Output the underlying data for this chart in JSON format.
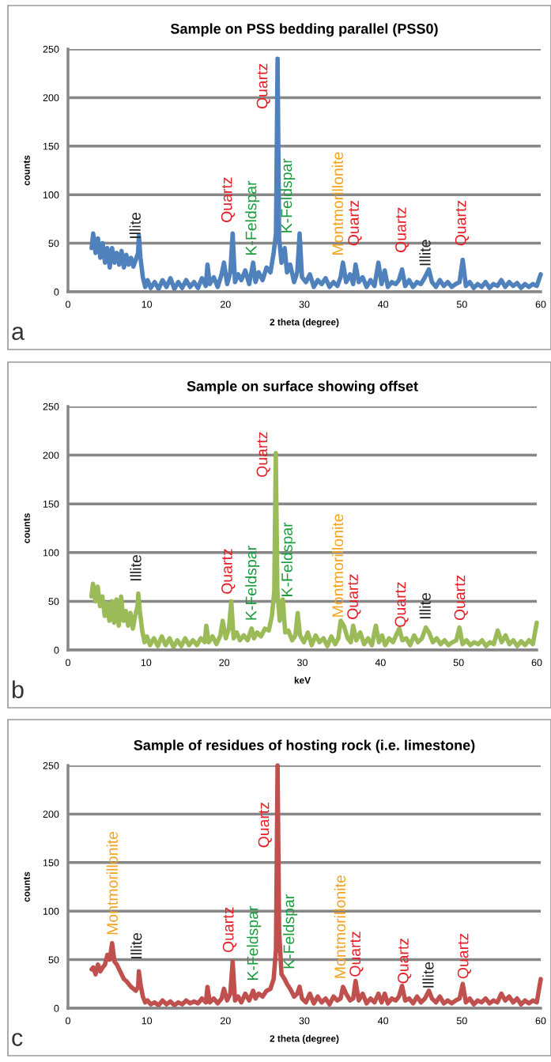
{
  "chart_data": [
    {
      "type": "line",
      "title": "Sample on PSS bedding parallel (PSS0)",
      "xlabel": "2 theta (degree)",
      "ylabel": "counts",
      "xlim": [
        0,
        60
      ],
      "ylim": [
        0,
        250
      ],
      "xticks": [
        0,
        10,
        20,
        30,
        40,
        50,
        60
      ],
      "yticks": [
        0,
        50,
        100,
        150,
        200,
        250
      ],
      "grid": "y",
      "legend": false,
      "marker": "none",
      "line_style": "solid",
      "x": [
        3,
        3.2,
        3.5,
        3.8,
        4.1,
        4.4,
        4.7,
        5.0,
        5.3,
        5.6,
        5.9,
        6.2,
        6.5,
        6.8,
        7.1,
        7.4,
        7.7,
        8.0,
        8.3,
        8.6,
        8.9,
        9.0,
        9.2,
        9.5,
        9.8,
        10.1,
        10.5,
        11,
        11.5,
        12,
        12.5,
        13,
        13.5,
        14,
        14.5,
        15,
        15.5,
        16,
        16.5,
        17,
        17.5,
        17.7,
        18,
        18.5,
        19,
        19.5,
        19.8,
        20.2,
        20.6,
        20.9,
        21.2,
        21.6,
        22,
        22.5,
        23,
        23.5,
        23.8,
        24.2,
        24.7,
        25.2,
        25.7,
        26.1,
        26.4,
        26.6,
        26.8,
        27.1,
        27.5,
        27.8,
        28.2,
        28.7,
        29.1,
        29.4,
        29.7,
        30.2,
        30.7,
        31.2,
        31.7,
        32.2,
        32.7,
        33.2,
        33.7,
        34.2,
        34.6,
        34.9,
        35.3,
        35.8,
        36.2,
        36.5,
        36.9,
        37.4,
        37.9,
        38.4,
        38.9,
        39.4,
        39.8,
        40.2,
        40.6,
        41.1,
        41.6,
        42.0,
        42.4,
        42.8,
        43.3,
        43.8,
        44.3,
        44.8,
        45.3,
        45.8,
        46.2,
        46.7,
        47.2,
        47.7,
        48.2,
        48.7,
        49.2,
        49.7,
        50.1,
        50.5,
        51,
        51.5,
        52,
        52.5,
        53,
        53.5,
        54,
        54.5,
        55,
        55.5,
        56,
        56.5,
        57,
        57.5,
        58,
        58.5,
        59,
        59.5,
        60
      ],
      "series": [
        {
          "color": "#4f81bd",
          "values": [
            45,
            60,
            40,
            55,
            35,
            50,
            30,
            45,
            25,
            45,
            30,
            40,
            28,
            42,
            25,
            38,
            28,
            35,
            26,
            33,
            40,
            58,
            35,
            15,
            5,
            12,
            4,
            10,
            3,
            12,
            5,
            14,
            3,
            10,
            4,
            12,
            5,
            10,
            4,
            14,
            6,
            28,
            8,
            15,
            5,
            18,
            30,
            8,
            20,
            60,
            10,
            18,
            12,
            22,
            8,
            30,
            10,
            20,
            12,
            25,
            20,
            40,
            60,
            240,
            55,
            30,
            45,
            20,
            28,
            10,
            20,
            60,
            15,
            10,
            18,
            5,
            12,
            8,
            14,
            5,
            10,
            6,
            15,
            30,
            10,
            18,
            8,
            28,
            10,
            15,
            5,
            12,
            6,
            30,
            8,
            22,
            5,
            10,
            8,
            12,
            23,
            6,
            12,
            5,
            10,
            8,
            15,
            23,
            10,
            5,
            12,
            6,
            10,
            5,
            8,
            10,
            33,
            6,
            10,
            4,
            8,
            5,
            10,
            4,
            8,
            6,
            12,
            5,
            10,
            6,
            9,
            4,
            8,
            5,
            8,
            6,
            18
          ]
        }
      ],
      "annotations": [
        "a",
        "Illite",
        "Quartz",
        "K-Feldspar",
        "Quartz",
        "K-Feldspar",
        "Montmorillonite",
        "Quartz",
        "Quartz",
        "Illite",
        "Quartz"
      ]
    },
    {
      "type": "line",
      "title": "Sample on surface showing offset",
      "xlabel": "keV",
      "ylabel": "counts",
      "xlim": [
        0,
        60
      ],
      "ylim": [
        0,
        250
      ],
      "xticks": [
        0,
        10,
        20,
        30,
        40,
        50,
        60
      ],
      "yticks": [
        0,
        50,
        100,
        150,
        200,
        250
      ],
      "grid": "y",
      "legend": false,
      "marker": "none",
      "line_style": "solid",
      "x": [
        3,
        3.2,
        3.5,
        3.8,
        4.1,
        4.4,
        4.7,
        5.0,
        5.3,
        5.6,
        5.9,
        6.2,
        6.5,
        6.8,
        7.1,
        7.4,
        7.7,
        8.0,
        8.3,
        8.6,
        8.9,
        9.0,
        9.2,
        9.5,
        9.8,
        10.1,
        10.5,
        11,
        11.5,
        12,
        12.5,
        13,
        13.5,
        14,
        14.5,
        15,
        15.5,
        16,
        16.5,
        17,
        17.5,
        17.7,
        18,
        18.5,
        19,
        19.5,
        19.8,
        20.2,
        20.6,
        20.9,
        21.2,
        21.6,
        22,
        22.5,
        23,
        23.5,
        23.8,
        24.2,
        24.7,
        25.2,
        25.7,
        26.1,
        26.4,
        26.6,
        26.8,
        27.1,
        27.5,
        27.8,
        28.2,
        28.7,
        29.1,
        29.4,
        29.7,
        30.2,
        30.7,
        31.2,
        31.7,
        32.2,
        32.7,
        33.2,
        33.7,
        34.2,
        34.6,
        34.9,
        35.3,
        35.8,
        36.2,
        36.5,
        36.9,
        37.4,
        37.9,
        38.4,
        38.9,
        39.4,
        39.8,
        40.2,
        40.6,
        41.1,
        41.6,
        42.0,
        42.4,
        42.8,
        43.3,
        43.8,
        44.3,
        44.8,
        45.3,
        45.8,
        46.2,
        46.7,
        47.2,
        47.7,
        48.2,
        48.7,
        49.2,
        49.7,
        50.1,
        50.5,
        51,
        51.5,
        52,
        52.5,
        53,
        53.5,
        54,
        54.5,
        55,
        55.5,
        56,
        56.5,
        57,
        57.5,
        58,
        58.5,
        59,
        59.5,
        60
      ],
      "series": [
        {
          "color": "#9bbb59",
          "values": [
            55,
            68,
            50,
            65,
            45,
            55,
            35,
            48,
            30,
            50,
            28,
            52,
            25,
            55,
            30,
            40,
            25,
            38,
            22,
            35,
            45,
            58,
            40,
            20,
            8,
            14,
            5,
            12,
            4,
            14,
            5,
            12,
            3,
            10,
            4,
            12,
            5,
            10,
            5,
            12,
            8,
            25,
            8,
            14,
            6,
            15,
            30,
            12,
            22,
            50,
            12,
            18,
            10,
            15,
            10,
            22,
            12,
            18,
            14,
            22,
            20,
            35,
            60,
            202,
            60,
            30,
            52,
            18,
            20,
            10,
            15,
            38,
            15,
            8,
            18,
            5,
            15,
            8,
            12,
            4,
            14,
            6,
            12,
            30,
            25,
            12,
            8,
            25,
            10,
            18,
            6,
            12,
            5,
            25,
            8,
            15,
            5,
            12,
            8,
            15,
            22,
            10,
            12,
            5,
            15,
            8,
            12,
            23,
            18,
            8,
            12,
            6,
            10,
            5,
            8,
            10,
            23,
            6,
            10,
            5,
            8,
            6,
            10,
            4,
            8,
            6,
            20,
            8,
            15,
            6,
            10,
            4,
            9,
            5,
            10,
            6,
            28
          ]
        }
      ],
      "annotations": [
        "b",
        "Illite",
        "Quartz",
        "K-Feldspar",
        "Quartz",
        "K-Feldspar",
        "Montmorillonite",
        "Quartz",
        "Quartz",
        "Illite",
        "Quartz"
      ]
    },
    {
      "type": "line",
      "title": "Sample of residues of hosting rock (i.e. limestone)",
      "xlabel": "2 theta (degree)",
      "ylabel": "counts",
      "xlim": [
        0,
        60
      ],
      "ylim": [
        0,
        250
      ],
      "xticks": [
        0,
        10,
        20,
        30,
        40,
        50,
        60
      ],
      "yticks": [
        0,
        50,
        100,
        150,
        200,
        250
      ],
      "grid": "y",
      "legend": false,
      "marker": "none",
      "line_style": "solid",
      "x": [
        3,
        3.2,
        3.5,
        3.8,
        4.1,
        4.4,
        4.7,
        5.0,
        5.3,
        5.6,
        5.9,
        6.2,
        6.5,
        6.8,
        7.1,
        7.4,
        7.7,
        8.0,
        8.3,
        8.6,
        8.9,
        9.0,
        9.2,
        9.5,
        9.8,
        10.1,
        10.5,
        11,
        11.5,
        12,
        12.5,
        13,
        13.5,
        14,
        14.5,
        15,
        15.5,
        16,
        16.5,
        17,
        17.5,
        17.7,
        18,
        18.5,
        19,
        19.5,
        19.8,
        20.2,
        20.6,
        20.9,
        21.2,
        21.6,
        22,
        22.5,
        23,
        23.5,
        23.8,
        24.2,
        24.7,
        25.2,
        25.7,
        26.1,
        26.4,
        26.6,
        26.8,
        27.1,
        27.5,
        27.8,
        28.2,
        28.7,
        29.1,
        29.4,
        29.7,
        30.2,
        30.7,
        31.2,
        31.7,
        32.2,
        32.7,
        33.2,
        33.7,
        34.2,
        34.6,
        34.9,
        35.3,
        35.8,
        36.2,
        36.5,
        36.9,
        37.4,
        37.9,
        38.4,
        38.9,
        39.4,
        39.8,
        40.2,
        40.6,
        41.1,
        41.6,
        42.0,
        42.4,
        42.8,
        43.3,
        43.8,
        44.3,
        44.8,
        45.3,
        45.8,
        46.2,
        46.7,
        47.2,
        47.7,
        48.2,
        48.7,
        49.2,
        49.7,
        50.1,
        50.5,
        51,
        51.5,
        52,
        52.5,
        53,
        53.5,
        54,
        54.5,
        55,
        55.5,
        56,
        56.5,
        57,
        57.5,
        58,
        58.5,
        59,
        59.5,
        60
      ],
      "series": [
        {
          "color": "#c0504d",
          "values": [
            40,
            42,
            35,
            45,
            38,
            42,
            45,
            55,
            50,
            67,
            48,
            45,
            40,
            35,
            30,
            28,
            25,
            22,
            20,
            18,
            22,
            38,
            25,
            12,
            6,
            8,
            4,
            6,
            3,
            8,
            4,
            7,
            3,
            6,
            4,
            8,
            5,
            7,
            5,
            10,
            6,
            22,
            6,
            10,
            5,
            10,
            20,
            8,
            15,
            48,
            8,
            12,
            6,
            15,
            8,
            18,
            10,
            15,
            12,
            18,
            20,
            30,
            60,
            250,
            80,
            35,
            30,
            25,
            20,
            12,
            15,
            22,
            10,
            6,
            15,
            5,
            12,
            6,
            10,
            4,
            12,
            8,
            10,
            22,
            15,
            8,
            10,
            28,
            8,
            15,
            5,
            10,
            6,
            15,
            6,
            15,
            5,
            10,
            8,
            12,
            23,
            8,
            10,
            5,
            12,
            6,
            10,
            18,
            10,
            6,
            12,
            5,
            8,
            5,
            8,
            10,
            25,
            6,
            10,
            4,
            8,
            6,
            10,
            5,
            8,
            6,
            15,
            8,
            12,
            6,
            10,
            4,
            8,
            5,
            8,
            6,
            30
          ]
        }
      ],
      "annotations": [
        "c",
        "Montmorillonite",
        "Illite",
        "Quartz",
        "K-Feldspar",
        "Quartz",
        "K-Feldspar",
        "Montmorillonite",
        "Quartz",
        "Quartz",
        "Illite",
        "Quartz"
      ]
    }
  ]
}
